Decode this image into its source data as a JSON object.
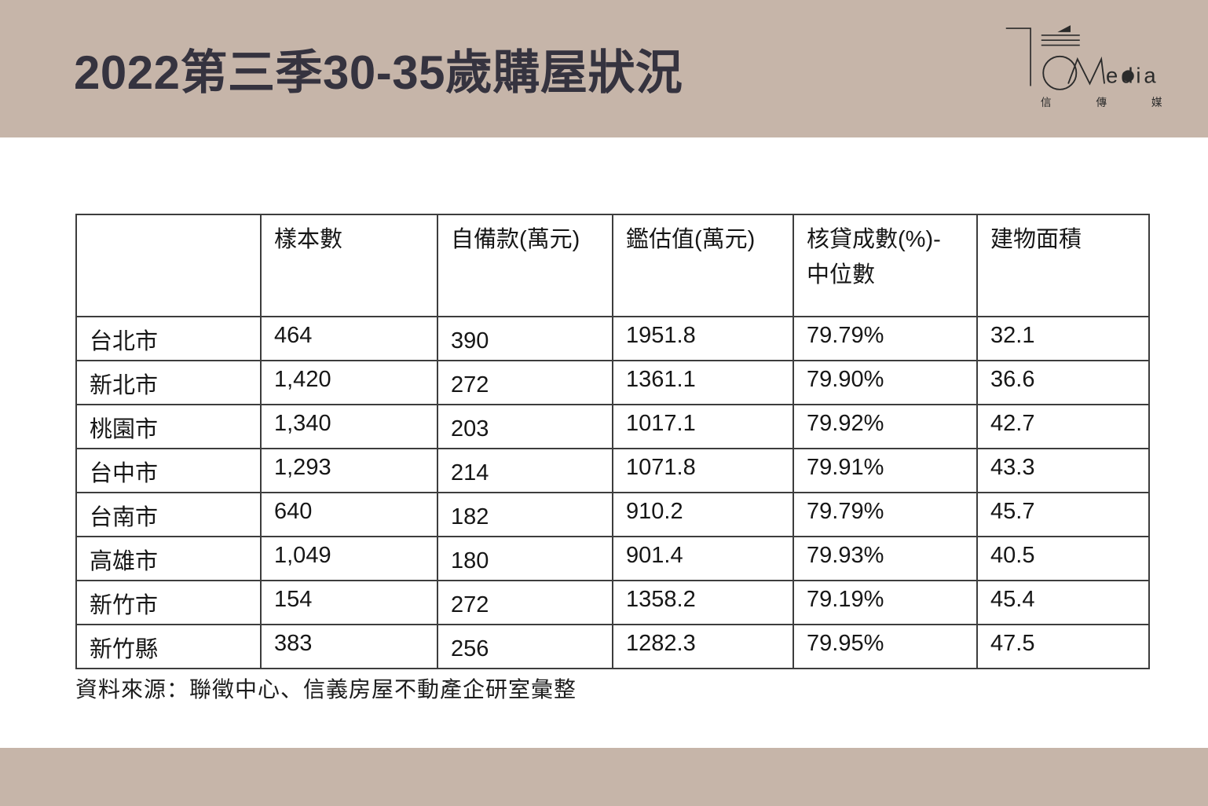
{
  "slide": {
    "title": "2022第三季30-35歲購屋狀況",
    "source_note": "資料來源：聯徵中心、信義房屋不動產企研室彙整"
  },
  "logo": {
    "name": "信傳媒 CMedia",
    "latin_suffix": "edia",
    "cjk_chars": [
      "信",
      "傳",
      "媒"
    ]
  },
  "colors": {
    "band": "#c6b5a9",
    "title_text": "#35333f",
    "table_border": "#3d3d3d",
    "table_text": "#161616",
    "logo_ink": "#2b2b2b"
  },
  "chart_data": {
    "type": "table",
    "title": "2022第三季30-35歲購屋狀況",
    "columns": [
      "",
      "樣本數",
      "自備款(萬元)",
      "鑑估值(萬元)",
      "核貸成數(%)-\n中位數",
      "建物面積"
    ],
    "rows": [
      [
        "台北市",
        "464",
        "390",
        "1951.8",
        "79.79%",
        "32.1"
      ],
      [
        "新北市",
        "1,420",
        "272",
        "1361.1",
        "79.90%",
        "36.6"
      ],
      [
        "桃園市",
        "1,340",
        "203",
        "1017.1",
        "79.92%",
        "42.7"
      ],
      [
        "台中市",
        "1,293",
        "214",
        "1071.8",
        "79.91%",
        "43.3"
      ],
      [
        "台南市",
        "640",
        "182",
        "910.2",
        "79.79%",
        "45.7"
      ],
      [
        "高雄市",
        "1,049",
        "180",
        "901.4",
        "79.93%",
        "40.5"
      ],
      [
        "新竹市",
        "154",
        "272",
        "1358.2",
        "79.19%",
        "45.4"
      ],
      [
        "新竹縣",
        "383",
        "256",
        "1282.3",
        "79.95%",
        "47.5"
      ]
    ],
    "source": "資料來源：聯徵中心、信義房屋不動產企研室彙整"
  }
}
